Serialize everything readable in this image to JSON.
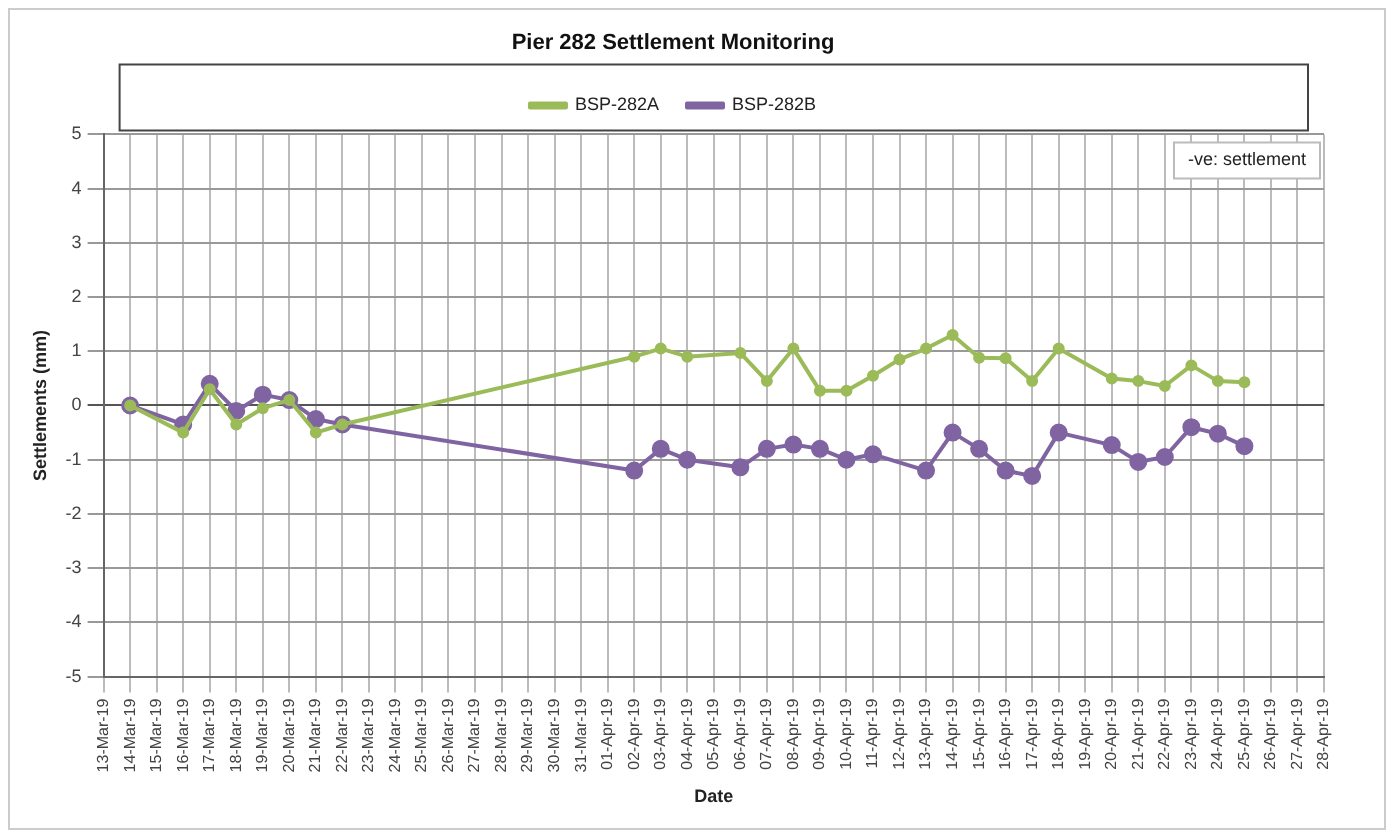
{
  "chart_data": {
    "type": "line",
    "title": "Pier 282 Settlement Monitoring",
    "xlabel": "Date",
    "ylabel": "Settlements (mm)",
    "categories": [
      "13-Mar-19",
      "14-Mar-19",
      "15-Mar-19",
      "16-Mar-19",
      "17-Mar-19",
      "18-Mar-19",
      "19-Mar-19",
      "20-Mar-19",
      "21-Mar-19",
      "22-Mar-19",
      "23-Mar-19",
      "24-Mar-19",
      "25-Mar-19",
      "26-Mar-19",
      "27-Mar-19",
      "28-Mar-19",
      "29-Mar-19",
      "30-Mar-19",
      "31-Mar-19",
      "01-Apr-19",
      "02-Apr-19",
      "03-Apr-19",
      "04-Apr-19",
      "05-Apr-19",
      "06-Apr-19",
      "07-Apr-19",
      "08-Apr-19",
      "09-Apr-19",
      "10-Apr-19",
      "11-Apr-19",
      "12-Apr-19",
      "13-Apr-19",
      "14-Apr-19",
      "15-Apr-19",
      "16-Apr-19",
      "17-Apr-19",
      "18-Apr-19",
      "19-Apr-19",
      "20-Apr-19",
      "21-Apr-19",
      "22-Apr-19",
      "23-Apr-19",
      "24-Apr-19",
      "25-Apr-19",
      "26-Apr-19",
      "27-Apr-19",
      "28-Apr-19"
    ],
    "series": [
      {
        "name": "BSP-282A",
        "color": "#9bbb59",
        "values": [
          null,
          0,
          null,
          -0.5,
          0.3,
          -0.35,
          -0.05,
          0.1,
          -0.5,
          -0.35,
          null,
          null,
          null,
          null,
          null,
          null,
          null,
          null,
          null,
          null,
          0.9,
          1.05,
          0.9,
          null,
          0.97,
          0.45,
          1.05,
          0.27,
          0.27,
          0.55,
          0.85,
          1.05,
          1.3,
          0.88,
          0.87,
          0.45,
          1.05,
          null,
          0.5,
          0.45,
          0.36,
          0.74,
          0.45,
          0.43,
          null,
          null,
          null
        ]
      },
      {
        "name": "BSP-282B",
        "color": "#8064a2",
        "values": [
          null,
          0,
          null,
          -0.35,
          0.4,
          -0.1,
          0.2,
          0.1,
          -0.25,
          -0.35,
          null,
          null,
          null,
          null,
          null,
          null,
          null,
          null,
          null,
          null,
          -1.2,
          -0.8,
          -1.0,
          null,
          -1.14,
          -0.8,
          -0.72,
          -0.8,
          -1.0,
          -0.9,
          null,
          -1.2,
          -0.5,
          -0.8,
          -1.2,
          -1.3,
          -0.5,
          null,
          -0.73,
          -1.04,
          -0.95,
          -0.4,
          -0.52,
          -0.75,
          null,
          null,
          null
        ]
      }
    ],
    "ylim": [
      -5,
      5
    ],
    "yticks": [
      -5,
      -4,
      -3,
      -2,
      -1,
      0,
      1,
      2,
      3,
      4,
      5
    ],
    "grid": true,
    "legend": "top",
    "marker": "circle",
    "line_style": "solid",
    "annotations": [
      "-ve: settlement"
    ]
  }
}
